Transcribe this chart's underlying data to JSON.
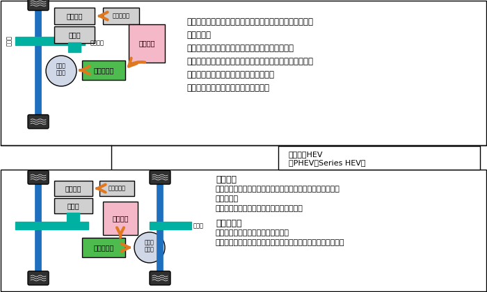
{
  "bg_color": "#ffffff",
  "border_color": "#000000",
  "top_text": "内燃機関による駆動と、電気モータによる駆動を行うこと\nができる。\n内燃機関と電気モータが別々の駆動輪を駆動する\n全く独立した駆動系を持つタイプと、同じ駆動輪を同時ま\nたは独立して駆動するタイプとがある。\n発電機あるいはまた充電器を備える。",
  "label_box": "パラレルHEV\n（PHEV：Series HEV）",
  "merit_title": "メリット",
  "merit_text": "内燃機関と電気モータの駆動力とを合わせて大きな駆動力を\n得られる。\nどちらかが失陥しても走行を継続できる。",
  "demerit_title": "デメリット",
  "demerit_text": "排気が出るため、無公害ではない。\n内燃機関の高効率化の効果は少なく、燃費向上効果は少ない。",
  "teal_color": "#00b0a0",
  "blue_color": "#1e6fbd",
  "green_color": "#4dbb4d",
  "pink_color": "#f4b8c8",
  "orange_color": "#e07820",
  "gray_color": "#b0b0b0",
  "light_gray": "#d0d0d0",
  "dark_gray": "#808080",
  "tire_color": "#303030",
  "shaft_color": "#1e6fbd",
  "axle_color": "#00c0b0"
}
